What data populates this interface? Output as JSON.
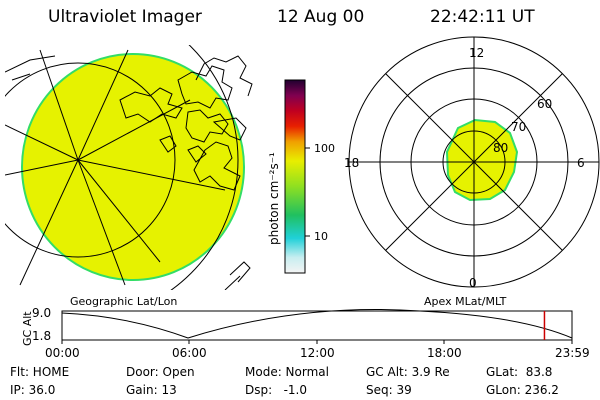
{
  "header": {
    "title": "Ultraviolet Imager",
    "date": "12 Aug 00",
    "time": "22:42:11 UT"
  },
  "colors": {
    "aurora_fill": "#e6f200",
    "aurora_edge": "#33dd66",
    "ink": "#000000",
    "marker": "#cc0000"
  },
  "colorbar": {
    "unit": "photon cm⁻²s⁻¹",
    "tick_100": "100",
    "tick_10": "10"
  },
  "left_panel": {
    "label": "Geographic Lat/Lon"
  },
  "right_panel": {
    "label": "Apex MLat/MLT",
    "mlt_top": "12",
    "mlt_left": "18",
    "mlt_right": "6",
    "mlt_bottom": "0",
    "lat_60": "60",
    "lat_70": "70",
    "lat_80": "80"
  },
  "altitude_plot": {
    "ylabel": "GC Alt",
    "ytick_top": "9.0",
    "ytick_bottom": "1.8",
    "xticks": [
      "00:00",
      "06:00",
      "12:00",
      "18:00",
      "23:59"
    ],
    "current_time_fraction": 0.946
  },
  "footer": {
    "flt": "Flt: HOME",
    "ip": "IP: 36.0",
    "door": "Door: Open",
    "gain": "Gain: 13",
    "mode": "Mode: Normal",
    "dsp": "Dsp:   -1.0",
    "gcalt": "GC Alt: 3.9 Re",
    "seq": "Seq: 39",
    "glat": "GLat:  83.8",
    "glon": "GLon: 236.2"
  }
}
